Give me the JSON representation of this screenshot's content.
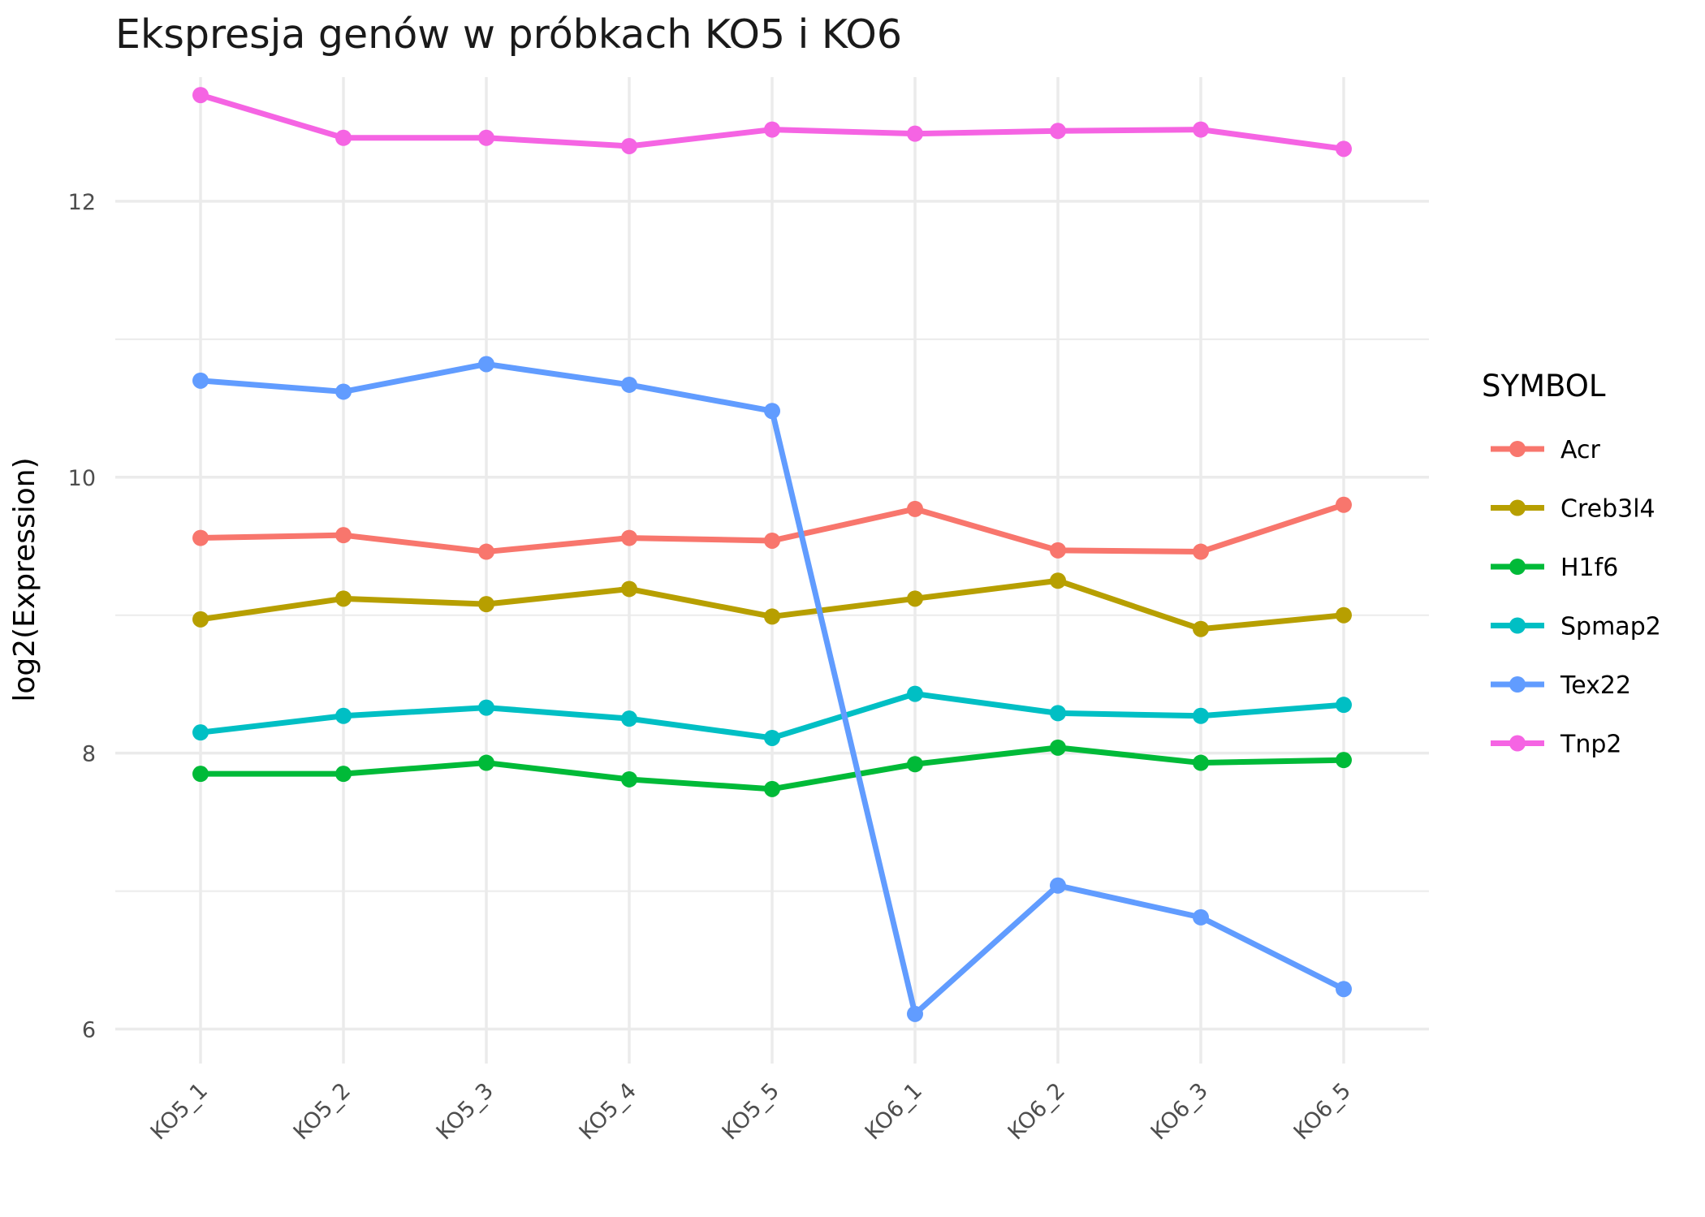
{
  "chart_data": {
    "type": "line",
    "title": "Ekspresja genów w próbkach KO5 i KO6",
    "xlabel": "",
    "ylabel": "log2(Expression)",
    "categories": [
      "KO5_1",
      "KO5_2",
      "KO5_3",
      "KO5_4",
      "KO5_5",
      "KO6_1",
      "KO6_2",
      "KO6_3",
      "KO6_5"
    ],
    "ylim": [
      5.75,
      12.9
    ],
    "yticks": [
      6,
      8,
      10,
      12
    ],
    "grid": true,
    "legend": {
      "title": "SYMBOL",
      "position": "right"
    },
    "series": [
      {
        "name": "Acr",
        "color": "#F8766D",
        "values": [
          9.56,
          9.58,
          9.46,
          9.56,
          9.54,
          9.77,
          9.47,
          9.46,
          9.8
        ]
      },
      {
        "name": "Creb3l4",
        "color": "#B79F00",
        "values": [
          8.97,
          9.12,
          9.08,
          9.19,
          8.99,
          9.12,
          9.25,
          8.9,
          9.0
        ]
      },
      {
        "name": "H1f6",
        "color": "#00BA38",
        "values": [
          7.85,
          7.85,
          7.93,
          7.81,
          7.74,
          7.92,
          8.04,
          7.93,
          7.95
        ]
      },
      {
        "name": "Spmap2",
        "color": "#00BFC4",
        "values": [
          8.15,
          8.27,
          8.33,
          8.25,
          8.11,
          8.43,
          8.29,
          8.27,
          8.35
        ]
      },
      {
        "name": "Tex22",
        "color": "#619CFF",
        "values": [
          10.7,
          10.62,
          10.82,
          10.67,
          10.48,
          6.11,
          7.04,
          6.81,
          6.29
        ]
      },
      {
        "name": "Tnp2",
        "color": "#F564E3",
        "values": [
          12.77,
          12.46,
          12.46,
          12.4,
          12.52,
          12.49,
          12.51,
          12.52,
          12.38
        ]
      }
    ]
  }
}
